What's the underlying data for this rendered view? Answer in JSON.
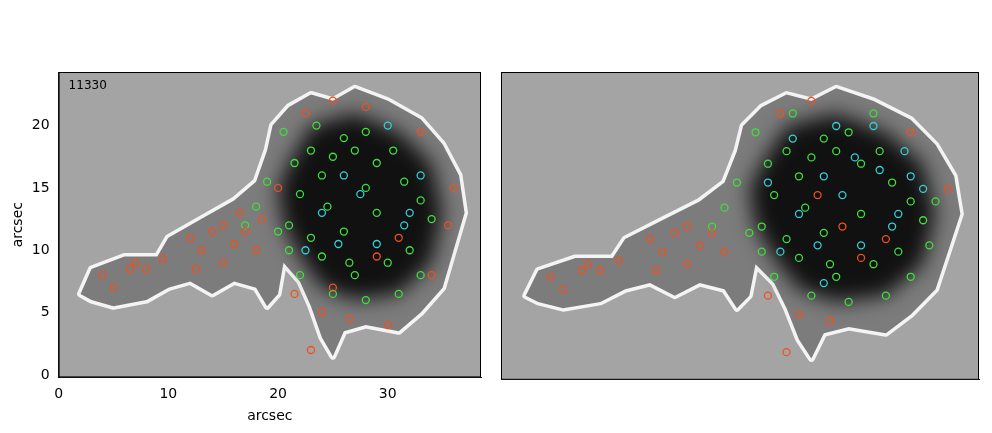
{
  "chart_data": [
    {
      "type": "scatter",
      "annotations": [
        "11330"
      ],
      "xlabel": "arcsec",
      "ylabel": "arcsec",
      "xlim": [
        0,
        38.5
      ],
      "ylim": [
        -0.2,
        24.3
      ],
      "xticks": [
        0,
        10,
        20,
        30
      ],
      "yticks": [
        0,
        5,
        10,
        15,
        20
      ],
      "grid": false,
      "tick_labels": true,
      "spot_outline": {
        "color": "#7c7c7c",
        "x": [
          2,
          3,
          6,
          9,
          10,
          13,
          16,
          18,
          19,
          19.5,
          21,
          23,
          25,
          27,
          30,
          33,
          35,
          36.5,
          37,
          36,
          35,
          33,
          31,
          28,
          26,
          25,
          24,
          23,
          22,
          20.5,
          20,
          19,
          18,
          16,
          14,
          12,
          10,
          8,
          5,
          3
        ],
        "y": [
          6.5,
          8.5,
          9.5,
          9.5,
          11,
          12.5,
          14,
          15.5,
          18,
          20,
          21.5,
          22.5,
          22,
          23,
          22,
          20.5,
          18.5,
          16,
          13,
          10,
          7,
          5,
          3.5,
          4,
          3.5,
          1.5,
          3,
          5.5,
          7.5,
          9,
          6.5,
          5.5,
          7,
          7.5,
          6.5,
          7.5,
          7,
          6,
          5.5,
          6
        ]
      },
      "umbra_outline": {
        "color": "#111111",
        "x": [
          21,
          23,
          27,
          31,
          34,
          35,
          34,
          31,
          27,
          24,
          22,
          20.5,
          20
        ],
        "y": [
          17,
          20,
          21,
          19.5,
          17,
          13,
          9,
          6.5,
          6,
          7,
          9.5,
          12,
          15
        ]
      },
      "series": [
        {
          "color": "#f0501e",
          "marker": "circle",
          "x": [
            4,
            5,
            6.5,
            7,
            8,
            9.5,
            12,
            13,
            14,
            15,
            16,
            16.5,
            17,
            18,
            18.5,
            15,
            12.5,
            20,
            22.5,
            25,
            28,
            33,
            36,
            35.5,
            24,
            26.5,
            30,
            23,
            34,
            21.5,
            29,
            31,
            25
          ],
          "values": [
            8,
            7,
            8.5,
            9,
            8.5,
            9.3,
            11,
            10,
            11.5,
            12,
            10.5,
            13,
            11.5,
            10,
            12.5,
            9,
            8.5,
            15,
            21,
            22,
            21.5,
            19.5,
            15,
            12,
            5,
            4.5,
            4,
            2,
            8,
            6.5,
            9.5,
            11,
            7
          ]
        },
        {
          "color": "#3ee03e",
          "marker": "circle",
          "x": [
            20.5,
            21.5,
            22,
            23,
            23.5,
            24,
            25,
            26,
            27,
            28,
            29,
            30.5,
            31.5,
            33,
            34,
            32,
            30,
            27,
            24,
            23,
            21,
            22,
            25,
            28,
            31,
            33,
            26,
            29,
            28,
            24.5,
            21,
            26.5,
            18,
            19,
            17,
            20
          ],
          "values": [
            19.5,
            17,
            14.5,
            18,
            20,
            16,
            17.5,
            19,
            18,
            19.5,
            17,
            18,
            15.5,
            14,
            12.5,
            10,
            9,
            8,
            9.5,
            11,
            12,
            8,
            6.5,
            6,
            6.5,
            8,
            11.5,
            13,
            15,
            13.5,
            10,
            9,
            13.5,
            15.5,
            12,
            11.5
          ]
        },
        {
          "color": "#33d0d8",
          "marker": "circle",
          "x": [
            24,
            26,
            29,
            31.5,
            33,
            27.5,
            30,
            22.5,
            25.5,
            32
          ],
          "values": [
            13,
            16,
            10.5,
            12,
            16,
            14.5,
            20,
            10,
            10.5,
            13
          ]
        }
      ]
    },
    {
      "type": "scatter",
      "xlim": [
        0,
        38.5
      ],
      "ylim": [
        -0.2,
        24.3
      ],
      "xticks": [
        0,
        10,
        20,
        30
      ],
      "yticks": [
        0,
        5,
        10,
        15,
        20
      ],
      "grid": false,
      "tick_labels": false,
      "spot_outline": {
        "color": "#7c7c7c",
        "x": [
          2,
          3,
          6,
          9,
          10,
          13,
          16,
          18,
          19,
          19.5,
          21,
          23,
          25,
          27,
          30,
          33,
          35,
          36.5,
          37,
          36,
          35,
          33,
          31,
          28,
          26,
          25,
          24,
          23,
          22,
          20.5,
          20,
          19,
          18,
          16,
          14,
          12,
          10,
          8,
          5,
          3
        ],
        "y": [
          6.5,
          8.5,
          9.5,
          9.5,
          11,
          12.5,
          14,
          15.5,
          18,
          20,
          21.5,
          22.5,
          22,
          23,
          22,
          20.5,
          18.5,
          16,
          13,
          10,
          7,
          5,
          3.5,
          4,
          3.5,
          1.5,
          3,
          5.5,
          7.5,
          9,
          6.5,
          5.5,
          7,
          7.5,
          6.5,
          7.5,
          7,
          6,
          5.5,
          6
        ]
      },
      "umbra_outline": {
        "color": "#111111",
        "x": [
          21,
          23,
          27,
          31,
          34,
          35,
          34,
          31,
          27,
          24,
          22,
          20.5,
          20
        ],
        "y": [
          17,
          20,
          21,
          19.5,
          17,
          13,
          9,
          6.5,
          6,
          7,
          9.5,
          12,
          15
        ]
      },
      "series": [
        {
          "color": "#f0501e",
          "marker": "circle",
          "x": [
            4,
            5,
            6.5,
            7,
            8,
            9.5,
            12,
            13,
            14,
            15,
            16,
            17,
            18,
            15,
            12.5,
            22.5,
            25,
            33,
            36,
            24,
            26.5,
            23,
            21.5,
            29,
            31,
            25.5,
            27.5
          ],
          "values": [
            8,
            7,
            8.5,
            9,
            8.5,
            9.3,
            11,
            10,
            11.5,
            12,
            10.5,
            11.5,
            10,
            9,
            8.5,
            21,
            22,
            19.5,
            15,
            5,
            4.5,
            2,
            6.5,
            9.5,
            11,
            14.5,
            12
          ]
        },
        {
          "color": "#3ee03e",
          "marker": "circle",
          "x": [
            20.5,
            21.5,
            22,
            23,
            24,
            25,
            26,
            27,
            28,
            29,
            30.5,
            31.5,
            33,
            34,
            32,
            30,
            27,
            24,
            23,
            21,
            22,
            25,
            28,
            31,
            33,
            26,
            29,
            24.5,
            21,
            26.5,
            18,
            19,
            17,
            20,
            35,
            34.5,
            23.5,
            30
          ],
          "values": [
            19.5,
            17,
            14.5,
            18,
            16,
            17.5,
            19,
            18,
            19.5,
            17,
            18,
            15.5,
            14,
            12.5,
            10,
            9,
            8,
            9.5,
            11,
            12,
            8,
            6.5,
            6,
            6.5,
            8,
            11.5,
            13,
            13.5,
            10,
            9,
            13.5,
            15.5,
            12,
            11.5,
            14,
            10.5,
            21,
            21
          ]
        },
        {
          "color": "#33d0d8",
          "marker": "circle",
          "x": [
            24,
            26,
            29,
            31.5,
            33,
            27.5,
            30,
            22.5,
            25.5,
            32,
            23.5,
            28.5,
            34,
            26,
            30.5,
            21.5,
            27,
            32.5
          ],
          "values": [
            13,
            16,
            10.5,
            12,
            16,
            14.5,
            20,
            10,
            10.5,
            13,
            19,
            17.5,
            15,
            7.5,
            16.5,
            15.5,
            20,
            18
          ]
        }
      ]
    }
  ]
}
